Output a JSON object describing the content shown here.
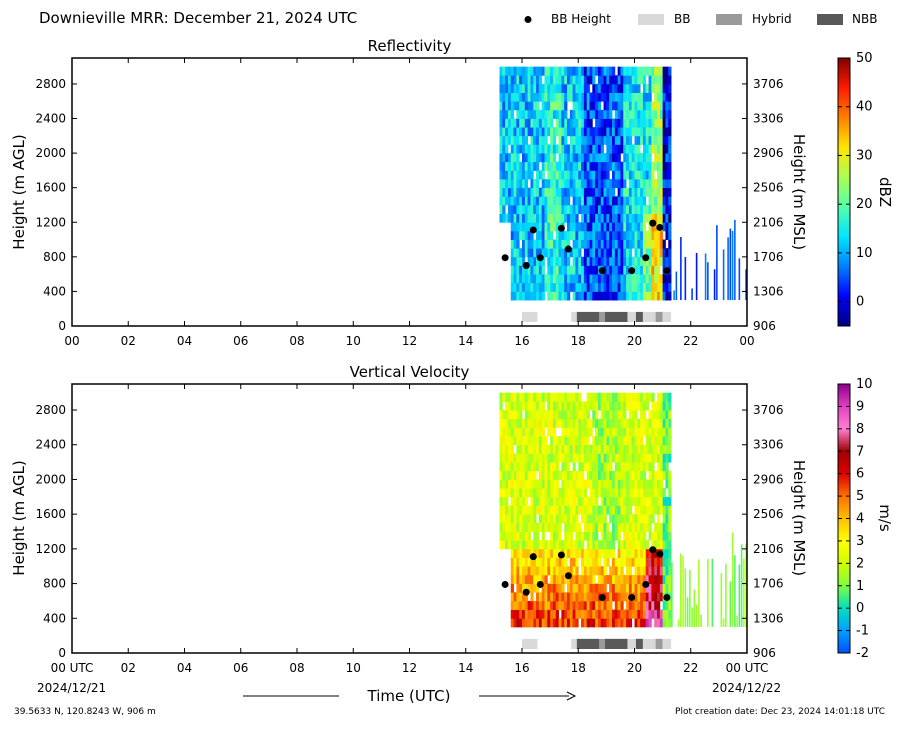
{
  "header": {
    "title": "Downieville MRR:  December 21, 2024 UTC",
    "legend": [
      {
        "label": "BB Height",
        "kind": "dot",
        "color": "#000000"
      },
      {
        "label": "BB",
        "kind": "box",
        "color": "#d9d9d9"
      },
      {
        "label": "Hybrid",
        "kind": "box",
        "color": "#9a9a9a"
      },
      {
        "label": "NBB",
        "kind": "box",
        "color": "#595959"
      }
    ]
  },
  "x_axis": {
    "tick_labels": [
      "00",
      "02",
      "04",
      "06",
      "08",
      "10",
      "12",
      "14",
      "16",
      "18",
      "20",
      "22",
      "00"
    ],
    "bottom_tick_labels": [
      "00 UTC",
      "02",
      "04",
      "06",
      "08",
      "10",
      "12",
      "14",
      "16",
      "18",
      "20",
      "22",
      "00 UTC"
    ],
    "start_date": "2024/12/21",
    "end_date": "2024/12/22",
    "label": "Time (UTC)"
  },
  "footer": {
    "location": "39.5633 N, 120.8243 W, 906 m",
    "creation": "Plot creation date: Dec 23, 2024 14:01:18 UTC"
  },
  "chart_data": [
    {
      "type": "heatmap",
      "title": "Reflectivity",
      "ylabel": "Height (m AGL)",
      "y2label": "Height (m MSL)",
      "xlim": [
        0,
        24
      ],
      "ylim": [
        0,
        3100
      ],
      "yticks": [
        0,
        400,
        800,
        1200,
        1600,
        2000,
        2400,
        2800
      ],
      "y2ticks": [
        "906",
        "1306",
        "1706",
        "2106",
        "2506",
        "2906",
        "3306",
        "3706"
      ],
      "colorbar": {
        "label": "dBZ",
        "min": -5,
        "max": 50,
        "ticks": [
          0,
          10,
          20,
          30,
          40,
          50
        ],
        "colors": [
          "#00007f",
          "#0000ff",
          "#0080ff",
          "#00e5ff",
          "#55ffaa",
          "#aaff55",
          "#ffe600",
          "#ff8000",
          "#ff1a00",
          "#7f0000"
        ]
      },
      "bb_height_points": [
        {
          "x": 15.4,
          "y": 790
        },
        {
          "x": 16.15,
          "y": 700
        },
        {
          "x": 16.4,
          "y": 1110
        },
        {
          "x": 16.65,
          "y": 790
        },
        {
          "x": 17.4,
          "y": 1130
        },
        {
          "x": 17.65,
          "y": 890
        },
        {
          "x": 18.85,
          "y": 640
        },
        {
          "x": 19.9,
          "y": 640
        },
        {
          "x": 20.4,
          "y": 790
        },
        {
          "x": 20.65,
          "y": 1190
        },
        {
          "x": 20.9,
          "y": 1140
        },
        {
          "x": 21.15,
          "y": 640
        }
      ],
      "bb_type_segments": [
        {
          "start": 16.0,
          "end": 16.55,
          "type": "BB"
        },
        {
          "start": 17.75,
          "end": 17.95,
          "type": "BB"
        },
        {
          "start": 17.95,
          "end": 18.75,
          "type": "NBB"
        },
        {
          "start": 18.75,
          "end": 18.95,
          "type": "Hybrid"
        },
        {
          "start": 18.95,
          "end": 19.75,
          "type": "NBB"
        },
        {
          "start": 19.75,
          "end": 20.05,
          "type": "BB"
        },
        {
          "start": 20.05,
          "end": 20.3,
          "type": "NBB"
        },
        {
          "start": 20.3,
          "end": 20.75,
          "type": "BB"
        },
        {
          "start": 20.75,
          "end": 21.0,
          "type": "Hybrid"
        },
        {
          "start": 21.0,
          "end": 21.3,
          "type": "BB"
        }
      ]
    },
    {
      "type": "heatmap",
      "title": "Vertical Velocity",
      "ylabel": "Height (m AGL)",
      "y2label": "Height (m MSL)",
      "xlim": [
        0,
        24
      ],
      "ylim": [
        0,
        3100
      ],
      "yticks": [
        0,
        400,
        800,
        1200,
        1600,
        2000,
        2400,
        2800
      ],
      "y2ticks": [
        "906",
        "1306",
        "1706",
        "2106",
        "2506",
        "2906",
        "3306",
        "3706"
      ],
      "colorbar": {
        "label": "m/s",
        "min": -2,
        "max": 10,
        "ticks": [
          -2,
          -1,
          0,
          1,
          2,
          3,
          4,
          5,
          6,
          7,
          8,
          9,
          10
        ],
        "colors": [
          "#0050ff",
          "#00a0ff",
          "#00e0c0",
          "#80ff40",
          "#d0ff00",
          "#ffff00",
          "#ffc000",
          "#ff7000",
          "#e00000",
          "#a00000",
          "#ff80d0",
          "#e040c0",
          "#900090"
        ]
      },
      "bb_height_points": [
        {
          "x": 15.4,
          "y": 790
        },
        {
          "x": 16.15,
          "y": 700
        },
        {
          "x": 16.4,
          "y": 1110
        },
        {
          "x": 16.65,
          "y": 790
        },
        {
          "x": 17.4,
          "y": 1130
        },
        {
          "x": 17.65,
          "y": 890
        },
        {
          "x": 18.85,
          "y": 640
        },
        {
          "x": 19.9,
          "y": 640
        },
        {
          "x": 20.4,
          "y": 790
        },
        {
          "x": 20.65,
          "y": 1190
        },
        {
          "x": 20.9,
          "y": 1140
        },
        {
          "x": 21.15,
          "y": 640
        }
      ],
      "bb_type_segments": [
        {
          "start": 16.0,
          "end": 16.55,
          "type": "BB"
        },
        {
          "start": 17.75,
          "end": 17.95,
          "type": "BB"
        },
        {
          "start": 17.95,
          "end": 18.75,
          "type": "NBB"
        },
        {
          "start": 18.75,
          "end": 18.95,
          "type": "Hybrid"
        },
        {
          "start": 18.95,
          "end": 19.75,
          "type": "NBB"
        },
        {
          "start": 19.75,
          "end": 20.05,
          "type": "BB"
        },
        {
          "start": 20.05,
          "end": 20.3,
          "type": "NBB"
        },
        {
          "start": 20.3,
          "end": 20.75,
          "type": "BB"
        },
        {
          "start": 20.75,
          "end": 21.0,
          "type": "Hybrid"
        },
        {
          "start": 21.0,
          "end": 21.3,
          "type": "BB"
        }
      ]
    }
  ]
}
